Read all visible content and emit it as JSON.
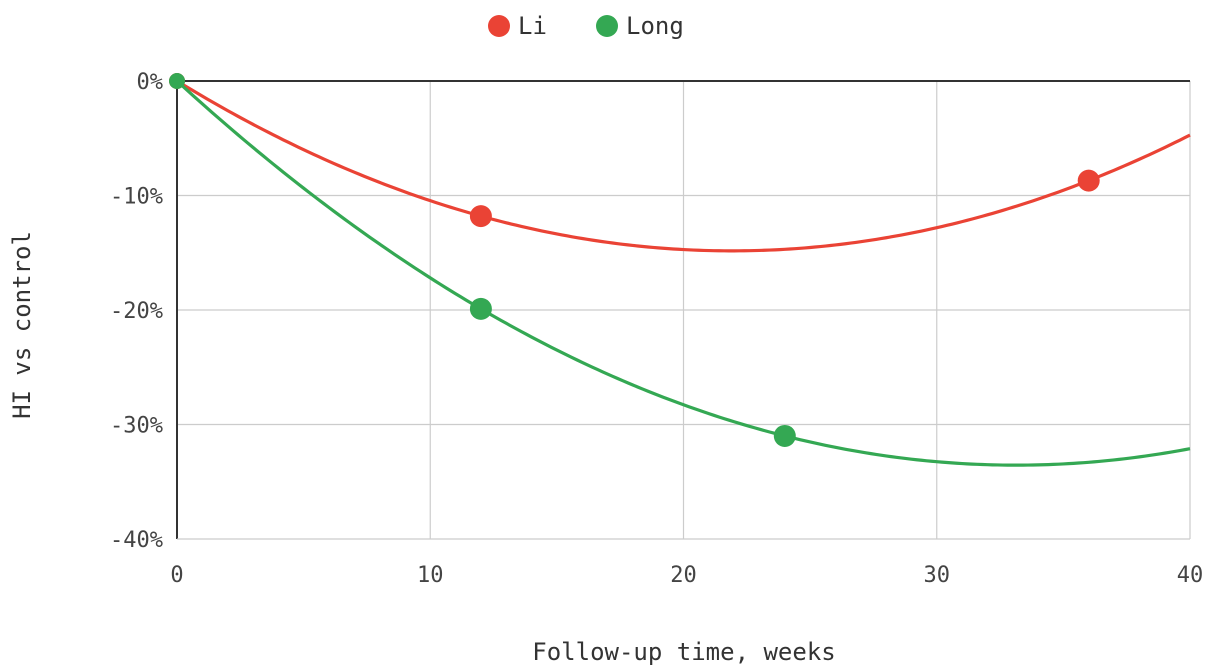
{
  "chart_data": {
    "type": "scatter",
    "title": "",
    "xlabel": "Follow-up time, weeks",
    "ylabel": "HI vs control",
    "xlim": [
      0,
      40
    ],
    "ylim": [
      -40,
      0
    ],
    "x_ticks": [
      0,
      10,
      20,
      30,
      40
    ],
    "x_tick_labels": [
      "0",
      "10",
      "20",
      "30",
      "40"
    ],
    "y_ticks": [
      0,
      -10,
      -20,
      -30,
      -40
    ],
    "y_tick_labels": [
      "0%",
      "-10%",
      "-20%",
      "-30%",
      "-40%"
    ],
    "grid": true,
    "legend_position": "top-center",
    "trendline": "polynomial-order-2",
    "series": [
      {
        "name": "Li",
        "color": "#ea4335",
        "x": [
          0,
          12,
          36
        ],
        "y": [
          0,
          -11.8,
          -8.7
        ]
      },
      {
        "name": "Long",
        "color": "#34a853",
        "x": [
          0,
          12,
          24
        ],
        "y": [
          0,
          -19.9,
          -31.0
        ]
      }
    ]
  }
}
